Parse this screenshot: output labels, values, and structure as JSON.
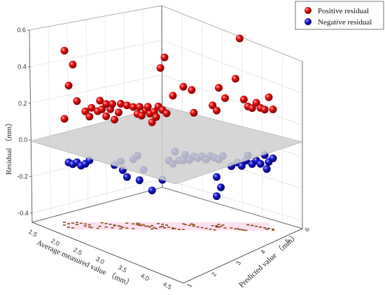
{
  "chart_data": {
    "type": "scatter",
    "subtype": "3d-scatter",
    "ylabel": "Residual （mm）",
    "xlabel": "Average measured value （mm）",
    "zlabel": "Predicted value （mm）",
    "y_ticks": [
      "0.6",
      "0.4",
      "0.2",
      "0.0",
      "-0.2",
      "-0.4"
    ],
    "ylim": [
      -0.45,
      0.6
    ],
    "legend": {
      "placement": "top-right",
      "items": [
        {
          "name": "Positive residual",
          "color": "#e00000"
        },
        {
          "name": "Negative residual",
          "color": "#1010c0"
        }
      ]
    },
    "zero_plane_color": "#cfcfcf",
    "series": [
      {
        "name": "Positive residual",
        "color": "#e00000",
        "points": [
          [
            0.0,
            0.55
          ],
          [
            0.04,
            0.47
          ],
          [
            0.02,
            0.35
          ],
          [
            0.06,
            0.26
          ],
          [
            0.0,
            0.16
          ],
          [
            0.1,
            0.2
          ],
          [
            0.12,
            0.17
          ],
          [
            0.13,
            0.22
          ],
          [
            0.16,
            0.2
          ],
          [
            0.18,
            0.21
          ],
          [
            0.2,
            0.17
          ],
          [
            0.22,
            0.21
          ],
          [
            0.24,
            0.15
          ],
          [
            0.26,
            0.19
          ],
          [
            0.17,
            0.26
          ],
          [
            0.2,
            0.24
          ],
          [
            0.23,
            0.24
          ],
          [
            0.27,
            0.24
          ],
          [
            0.3,
            0.23
          ],
          [
            0.33,
            0.22
          ],
          [
            0.35,
            0.18
          ],
          [
            0.37,
            0.17
          ],
          [
            0.39,
            0.2
          ],
          [
            0.41,
            0.18
          ],
          [
            0.43,
            0.19
          ],
          [
            0.44,
            0.16
          ],
          [
            0.42,
            0.13
          ],
          [
            0.45,
            0.22
          ],
          [
            0.47,
            0.2
          ],
          [
            0.49,
            0.18
          ],
          [
            0.36,
            0.22
          ],
          [
            0.4,
            0.22
          ],
          [
            0.46,
            0.44
          ],
          [
            0.48,
            0.5
          ],
          [
            0.52,
            0.28
          ],
          [
            0.57,
            0.33
          ],
          [
            0.61,
            0.31
          ],
          [
            0.62,
            0.18
          ],
          [
            0.71,
            0.22
          ],
          [
            0.73,
            0.19
          ],
          [
            0.74,
            0.32
          ],
          [
            0.77,
            0.26
          ],
          [
            0.82,
            0.37
          ],
          [
            0.84,
            0.6
          ],
          [
            0.86,
            0.25
          ],
          [
            0.88,
            0.21
          ],
          [
            0.9,
            0.2
          ],
          [
            0.92,
            0.23
          ],
          [
            0.94,
            0.2
          ],
          [
            0.96,
            0.19
          ],
          [
            0.98,
            0.26
          ],
          [
            1.0,
            0.19
          ]
        ]
      },
      {
        "name": "Negative residual",
        "color": "#1010c0",
        "points": [
          [
            0.02,
            -0.09
          ],
          [
            0.04,
            -0.1
          ],
          [
            0.06,
            -0.09
          ],
          [
            0.08,
            -0.11
          ],
          [
            0.1,
            -0.1
          ],
          [
            0.12,
            -0.08
          ],
          [
            0.24,
            -0.11
          ],
          [
            0.27,
            -0.09
          ],
          [
            0.28,
            -0.14
          ],
          [
            0.3,
            -0.18
          ],
          [
            0.33,
            -0.08
          ],
          [
            0.35,
            -0.06
          ],
          [
            0.36,
            -0.2
          ],
          [
            0.38,
            -0.14
          ],
          [
            0.42,
            -0.26
          ],
          [
            0.47,
            -0.2
          ],
          [
            0.5,
            -0.09
          ],
          [
            0.52,
            -0.11
          ],
          [
            0.53,
            -0.04
          ],
          [
            0.55,
            -0.09
          ],
          [
            0.57,
            -0.09
          ],
          [
            0.58,
            -0.06
          ],
          [
            0.6,
            -0.09
          ],
          [
            0.62,
            -0.07
          ],
          [
            0.64,
            -0.08
          ],
          [
            0.66,
            -0.07
          ],
          [
            0.68,
            -0.09
          ],
          [
            0.7,
            -0.07
          ],
          [
            0.72,
            -0.08
          ],
          [
            0.74,
            -0.09
          ],
          [
            0.76,
            -0.07
          ],
          [
            0.73,
            -0.19
          ],
          [
            0.75,
            -0.25
          ],
          [
            0.73,
            -0.3
          ],
          [
            0.8,
            -0.13
          ],
          [
            0.83,
            -0.11
          ],
          [
            0.85,
            -0.13
          ],
          [
            0.87,
            -0.1
          ],
          [
            0.88,
            -0.07
          ],
          [
            0.9,
            -0.12
          ],
          [
            0.92,
            -0.1
          ],
          [
            0.94,
            -0.12
          ],
          [
            0.96,
            -0.07
          ],
          [
            0.98,
            -0.11
          ],
          [
            0.97,
            -0.15
          ],
          [
            1.0,
            -0.09
          ]
        ]
      }
    ]
  }
}
